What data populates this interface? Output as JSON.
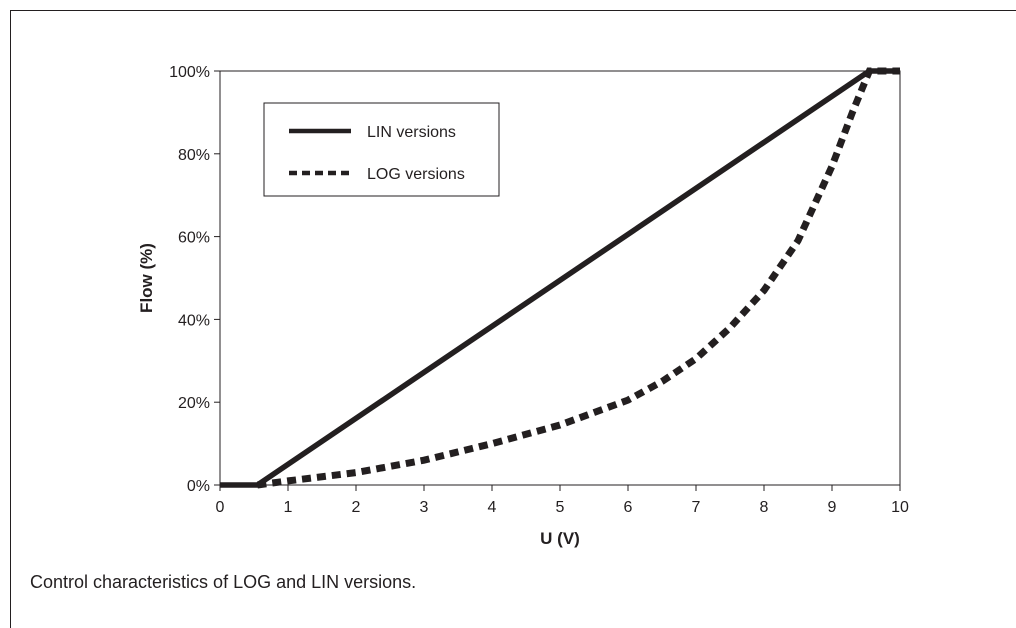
{
  "caption": "Control characteristics of LOG and LIN versions.",
  "chart_data": {
    "type": "line",
    "xlabel": "U (V)",
    "ylabel": "Flow (%)",
    "xlim": [
      0,
      10
    ],
    "ylim": [
      0,
      100
    ],
    "x_ticks": [
      "0",
      "1",
      "2",
      "3",
      "4",
      "5",
      "6",
      "7",
      "8",
      "9",
      "10"
    ],
    "y_ticks": [
      "0%",
      "20%",
      "40%",
      "60%",
      "80%",
      "100%"
    ],
    "grid": false,
    "legend_position": "top-left",
    "series": [
      {
        "name": "LIN versions",
        "style": "solid",
        "color": "#231f20",
        "x": [
          0,
          0.55,
          9.55,
          10
        ],
        "y": [
          0,
          0,
          100,
          100
        ]
      },
      {
        "name": "LOG versions",
        "style": "dashed",
        "color": "#231f20",
        "x": [
          0.55,
          1,
          2,
          3,
          4,
          5,
          6,
          6.5,
          7,
          7.5,
          8,
          8.5,
          9,
          9.3,
          9.55,
          10
        ],
        "y": [
          0,
          1,
          3,
          6,
          10,
          14.5,
          20.5,
          25,
          30.5,
          38,
          47,
          59,
          77,
          90,
          100,
          100
        ]
      }
    ]
  }
}
